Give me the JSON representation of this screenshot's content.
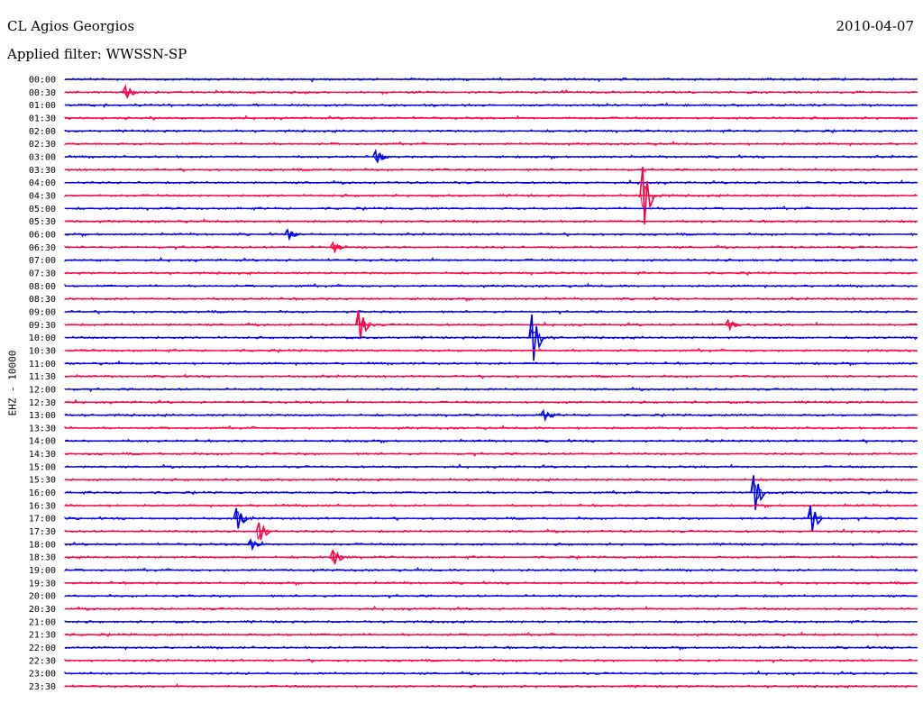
{
  "header": {
    "station": "CL Agios Georgios",
    "date": "2010-04-07",
    "filter": "Applied filter: WWSSN-SP"
  },
  "colors": {
    "even_trace": "#0000ee",
    "odd_trace": "#ff0044"
  },
  "chart_data": {
    "type": "line",
    "title": "CL Agios Georgios",
    "ylabel": "EHZ - 10000",
    "rows": [
      "00:00",
      "00:30",
      "01:00",
      "01:30",
      "02:00",
      "02:30",
      "03:00",
      "03:30",
      "04:00",
      "04:30",
      "05:00",
      "05:30",
      "06:00",
      "06:30",
      "07:00",
      "07:30",
      "08:00",
      "08:30",
      "09:00",
      "09:30",
      "10:00",
      "10:30",
      "11:00",
      "11:30",
      "12:00",
      "12:30",
      "13:00",
      "13:30",
      "14:00",
      "14:30",
      "15:00",
      "15:30",
      "16:00",
      "16:30",
      "17:00",
      "17:30",
      "18:00",
      "18:30",
      "19:00",
      "19:30",
      "20:00",
      "20:30",
      "21:00",
      "21:30",
      "22:00",
      "22:30",
      "23:00",
      "23:30"
    ],
    "x_range_minutes": [
      0,
      30
    ],
    "events": [
      {
        "row": "00:30",
        "minute": 2.1,
        "amplitude": 0.4
      },
      {
        "row": "03:00",
        "minute": 10.9,
        "amplitude": 0.4
      },
      {
        "row": "04:30",
        "minute": 20.3,
        "amplitude": 2.0
      },
      {
        "row": "06:00",
        "minute": 7.8,
        "amplitude": 0.3
      },
      {
        "row": "06:30",
        "minute": 9.4,
        "amplitude": 0.3
      },
      {
        "row": "09:30",
        "minute": 10.3,
        "amplitude": 1.0
      },
      {
        "row": "09:30",
        "minute": 23.3,
        "amplitude": 0.3
      },
      {
        "row": "10:00",
        "minute": 16.4,
        "amplitude": 1.6
      },
      {
        "row": "13:00",
        "minute": 16.8,
        "amplitude": 0.3
      },
      {
        "row": "16:00",
        "minute": 24.2,
        "amplitude": 1.2
      },
      {
        "row": "17:00",
        "minute": 6.0,
        "amplitude": 0.7
      },
      {
        "row": "17:00",
        "minute": 26.2,
        "amplitude": 0.9
      },
      {
        "row": "17:30",
        "minute": 6.8,
        "amplitude": 0.6
      },
      {
        "row": "18:00",
        "minute": 6.5,
        "amplitude": 0.3
      },
      {
        "row": "18:30",
        "minute": 9.4,
        "amplitude": 0.5
      }
    ]
  }
}
